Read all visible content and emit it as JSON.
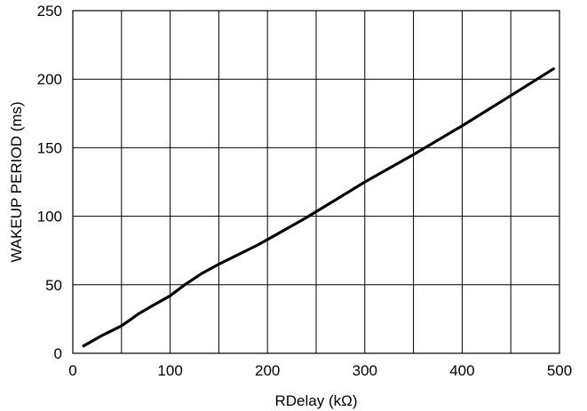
{
  "chart_data": {
    "type": "line",
    "title": "",
    "xlabel": "RDelay (kΩ)",
    "ylabel": "WAKEUP PERIOD (ms)",
    "xlim": [
      0,
      500
    ],
    "ylim": [
      0,
      250
    ],
    "x_ticks": [
      0,
      100,
      200,
      300,
      400,
      500
    ],
    "y_ticks": [
      0,
      50,
      100,
      150,
      200,
      250
    ],
    "x_grid": [
      0,
      50,
      100,
      150,
      200,
      250,
      300,
      350,
      400,
      450,
      500
    ],
    "y_grid": [
      0,
      50,
      100,
      150,
      200,
      250
    ],
    "grid": true,
    "legend": "none",
    "line_color": "#000000",
    "series": [
      {
        "x": [
          10,
          30,
          50,
          60,
          68,
          80,
          100,
          115,
          132,
          150,
          170,
          190,
          210,
          240,
          270,
          300,
          350,
          400,
          450,
          495
        ],
        "y": [
          5,
          13,
          20,
          25,
          29,
          34,
          42,
          50,
          58,
          65,
          72,
          79,
          87,
          99,
          112,
          125,
          145,
          166,
          188,
          208
        ]
      }
    ]
  }
}
